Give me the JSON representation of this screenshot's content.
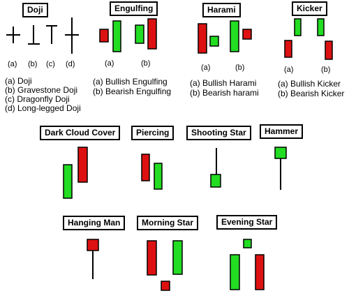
{
  "colors": {
    "bull": "#22dd22",
    "bear": "#dd1111",
    "stroke": "#000000"
  },
  "doji": {
    "title": "Doji",
    "labels": [
      "(a)",
      "(b)",
      "(c)",
      "(d)"
    ],
    "captions": [
      "(a) Doji",
      "(b) Gravestone Doji",
      "(c) Dragonfly Doji",
      "(d) Long-legged Doji"
    ]
  },
  "engulfing": {
    "title": "Engulfing",
    "labels": [
      "(a)",
      "(b)"
    ],
    "captions": [
      "(a) Bullish Engulfing",
      "(b) Bearish Engulfing"
    ]
  },
  "harami": {
    "title": "Harami",
    "labels": [
      "(a)",
      "(b)"
    ],
    "captions": [
      "(a) Bullish Harami",
      "(b) Bearish harami"
    ]
  },
  "kicker": {
    "title": "Kicker",
    "labels": [
      "(a)",
      "(b)"
    ],
    "captions": [
      "(a) Bullish Kicker",
      "(b) Bearish Kicker"
    ]
  },
  "dark_cloud": {
    "title": "Dark Cloud Cover"
  },
  "piercing": {
    "title": "Piercing"
  },
  "shooting_star": {
    "title": "Shooting Star"
  },
  "hammer": {
    "title": "Hammer"
  },
  "hanging_man": {
    "title": "Hanging Man"
  },
  "morning_star": {
    "title": "Morning Star"
  },
  "evening_star": {
    "title": "Evening Star"
  }
}
